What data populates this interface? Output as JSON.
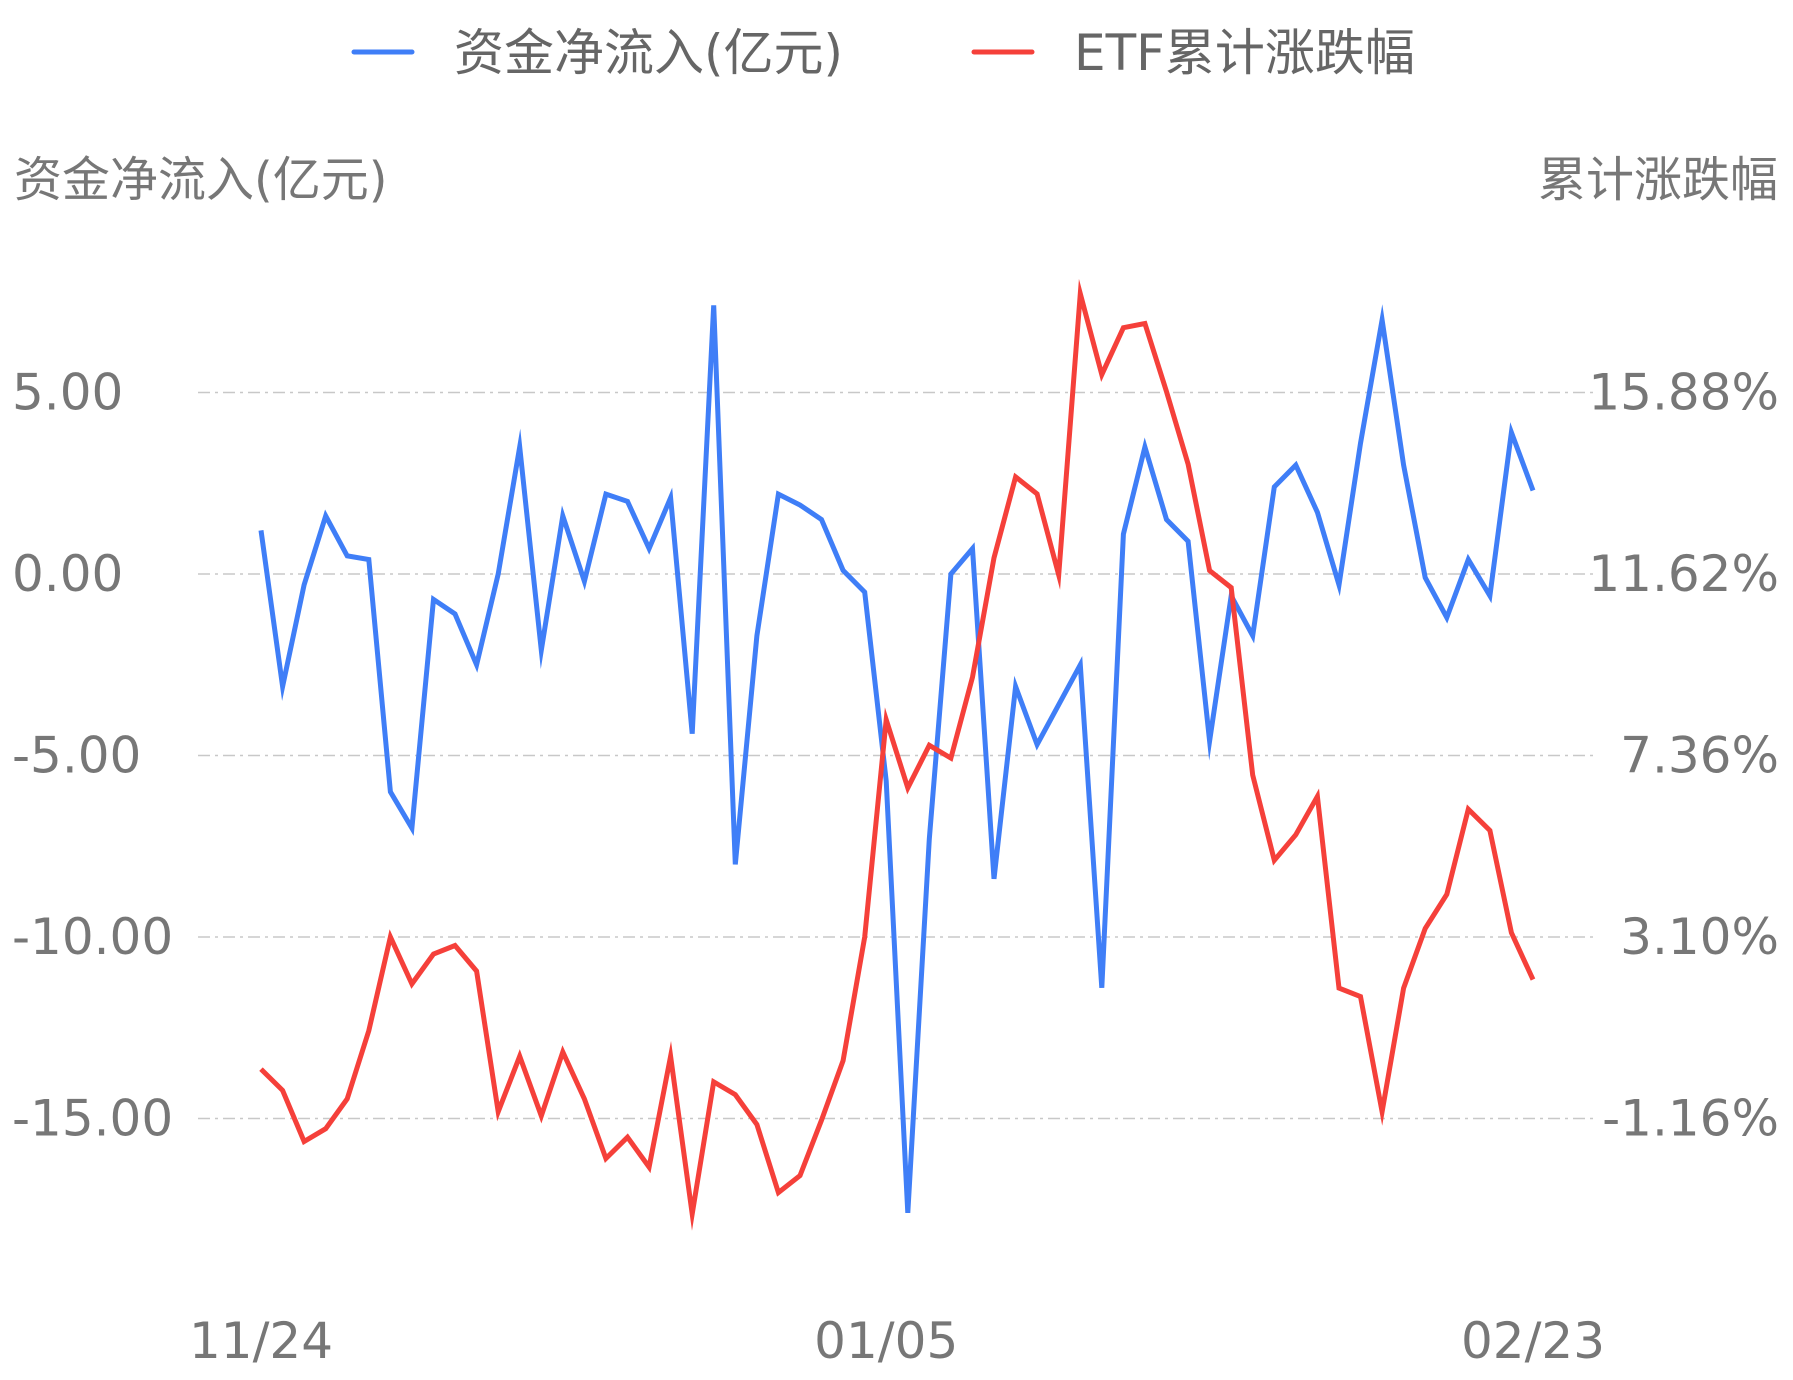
{
  "chart_data": {
    "type": "line",
    "legend": {
      "position": "top",
      "items": [
        {
          "name": "资金净流入(亿元)",
          "color": "#3f7ef7"
        },
        {
          "name": "ETF累计涨跌幅",
          "color": "#f5403a"
        }
      ]
    },
    "y_left": {
      "title": "资金净流入(亿元)",
      "ticks": [
        "5.00",
        "0.00",
        "-5.00",
        "-10.00",
        "-15.00"
      ],
      "tick_values": [
        5,
        0,
        -5,
        -10,
        -15
      ]
    },
    "y_right": {
      "title": "累计涨跌幅",
      "ticks": [
        "15.88%",
        "11.62%",
        "7.36%",
        "3.10%",
        "-1.16%"
      ],
      "tick_values": [
        15.88,
        11.62,
        7.36,
        3.1,
        -1.16
      ]
    },
    "x_ticks": [
      {
        "label": "11/24",
        "index": 0
      },
      {
        "label": "01/05",
        "index": 29
      },
      {
        "label": "02/23",
        "index": 59
      }
    ],
    "grid": true,
    "series": [
      {
        "name": "资金净流入(亿元)",
        "axis": "left",
        "color": "#3f7ef7",
        "values": [
          1.2,
          -3.1,
          -0.3,
          1.6,
          0.5,
          0.4,
          -6.0,
          -7.0,
          -0.7,
          -1.1,
          -2.5,
          0.0,
          3.5,
          -2.1,
          1.6,
          -0.2,
          2.2,
          2.0,
          0.7,
          2.1,
          -4.4,
          7.4,
          -8.0,
          -1.7,
          2.2,
          1.9,
          1.5,
          0.1,
          -0.5,
          -5.7,
          -17.6,
          -7.3,
          0.0,
          0.7,
          -8.4,
          -3.1,
          -4.7,
          -3.6,
          -2.5,
          -11.4,
          1.1,
          3.5,
          1.5,
          0.9,
          -4.6,
          -0.6,
          -1.7,
          2.4,
          3.0,
          1.7,
          -0.3,
          3.6,
          7.0,
          3.0,
          -0.1,
          -1.2,
          0.4,
          -0.6,
          3.9,
          2.3
        ]
      },
      {
        "name": "ETF累计涨跌幅",
        "axis": "right",
        "color": "#f5403a",
        "values": [
          0.0,
          -0.5,
          -1.7,
          -1.4,
          -0.7,
          0.9,
          3.1,
          2.0,
          2.7,
          2.9,
          2.3,
          -1.0,
          0.3,
          -1.1,
          0.4,
          -0.7,
          -2.1,
          -1.6,
          -2.3,
          0.3,
          -3.4,
          -0.3,
          -0.6,
          -1.3,
          -2.9,
          -2.5,
          -1.2,
          0.2,
          3.1,
          8.2,
          6.6,
          7.6,
          7.3,
          9.2,
          12.0,
          13.9,
          13.5,
          11.6,
          18.2,
          16.3,
          17.4,
          17.5,
          15.9,
          14.2,
          11.7,
          11.3,
          6.9,
          4.9,
          5.5,
          6.4,
          1.9,
          1.7,
          -1.0,
          1.9,
          3.3,
          4.1,
          6.1,
          5.6,
          3.2,
          2.1
        ]
      }
    ]
  }
}
